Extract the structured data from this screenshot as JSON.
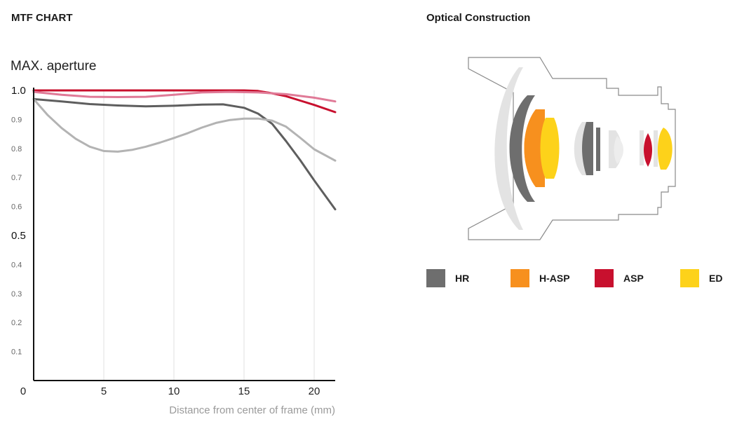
{
  "mtf_heading": "MTF CHART",
  "optical_heading": "Optical Construction",
  "chart_data": {
    "type": "line",
    "title": "MAX. aperture",
    "xlabel": "Distance from center of frame (mm)",
    "ylabel": "",
    "xlim": [
      0,
      21.5
    ],
    "ylim": [
      0,
      1.0
    ],
    "x_ticks": [
      0,
      5,
      10,
      15,
      20
    ],
    "y_ticks": [
      "1.0",
      "0.9",
      "0.8",
      "0.7",
      "0.6",
      "0.5",
      "0.4",
      "0.3",
      "0.2",
      "0.1"
    ],
    "grid": true,
    "series": [
      {
        "color": "#c8102e",
        "x": [
          0,
          2,
          4,
          6,
          8,
          10,
          12,
          14,
          15,
          16,
          17,
          18,
          19,
          20,
          21.5
        ],
        "y": [
          1.0,
          1.0,
          1.0,
          1.0,
          1.0,
          1.0,
          1.0,
          1.0,
          1.0,
          0.998,
          0.99,
          0.98,
          0.965,
          0.95,
          0.925
        ]
      },
      {
        "color": "#e07a97",
        "x": [
          0,
          2,
          4,
          6,
          8,
          10,
          12,
          14,
          16,
          18,
          20,
          21.5
        ],
        "y": [
          0.995,
          0.985,
          0.978,
          0.977,
          0.978,
          0.985,
          0.993,
          0.995,
          0.993,
          0.987,
          0.975,
          0.962
        ]
      },
      {
        "color": "#5e5e5e",
        "x": [
          0,
          2,
          4,
          6,
          8,
          10,
          12,
          13.5,
          15,
          16,
          17,
          18,
          19,
          20,
          21.5
        ],
        "y": [
          0.97,
          0.962,
          0.953,
          0.948,
          0.945,
          0.947,
          0.951,
          0.952,
          0.94,
          0.92,
          0.885,
          0.825,
          0.76,
          0.69,
          0.59
        ]
      },
      {
        "color": "#b3b3b3",
        "x": [
          0,
          1,
          2,
          3,
          4,
          5,
          6,
          7,
          8,
          9,
          10,
          11,
          12,
          13,
          14,
          15,
          16,
          17,
          18,
          19,
          20,
          21.5
        ],
        "y": [
          0.97,
          0.915,
          0.87,
          0.833,
          0.806,
          0.791,
          0.789,
          0.795,
          0.806,
          0.82,
          0.836,
          0.853,
          0.872,
          0.888,
          0.898,
          0.903,
          0.903,
          0.896,
          0.875,
          0.837,
          0.797,
          0.758
        ]
      }
    ]
  },
  "legend": [
    {
      "label": "HR",
      "color": "#6e6e6e"
    },
    {
      "label": "H-ASP",
      "color": "#f7901e"
    },
    {
      "label": "ASP",
      "color": "#c8102e"
    },
    {
      "label": "ED",
      "color": "#fdd21a"
    }
  ],
  "colors": {
    "hr": "#6e6e6e",
    "hasp": "#f7901e",
    "asp": "#c8102e",
    "ed": "#fdd21a",
    "plain_glass": "#e3e3e3"
  }
}
